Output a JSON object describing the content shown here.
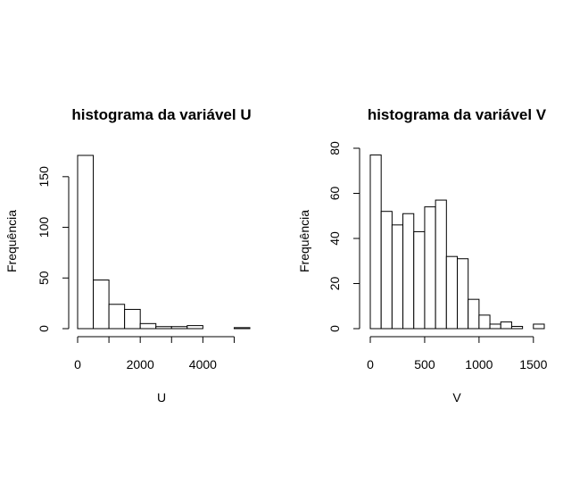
{
  "chart_data": [
    {
      "type": "bar",
      "subtype": "histogram",
      "title": "histograma da variável U",
      "xlabel": "U",
      "ylabel": "Frequência",
      "bin_edges": [
        0,
        500,
        1000,
        1500,
        2000,
        2500,
        3000,
        3500,
        4000,
        4500,
        5000,
        5500
      ],
      "values": [
        171,
        48,
        24,
        19,
        5,
        2,
        2,
        3,
        0,
        0,
        1
      ],
      "xlim": [
        0,
        5500
      ],
      "ylim": [
        0,
        171
      ],
      "x_ticks": [
        0,
        2000,
        4000
      ],
      "x_ticks_unlabeled": [
        1000,
        3000,
        5000
      ],
      "y_ticks": [
        0,
        50,
        100,
        150
      ],
      "grid": false,
      "legend": "none"
    },
    {
      "type": "bar",
      "subtype": "histogram",
      "title": "histograma da variável V",
      "xlabel": "V",
      "ylabel": "Frequência",
      "bin_edges": [
        0,
        100,
        200,
        300,
        400,
        500,
        600,
        700,
        800,
        900,
        1000,
        1100,
        1200,
        1300,
        1400,
        1500,
        1600
      ],
      "values": [
        77,
        52,
        46,
        51,
        43,
        54,
        57,
        32,
        31,
        13,
        6,
        2,
        3,
        1,
        0,
        2
      ],
      "xlim": [
        0,
        1600
      ],
      "ylim": [
        0,
        80
      ],
      "x_ticks": [
        0,
        500,
        1000,
        1500
      ],
      "y_ticks": [
        0,
        20,
        40,
        60,
        80
      ],
      "grid": false,
      "legend": "none"
    }
  ]
}
